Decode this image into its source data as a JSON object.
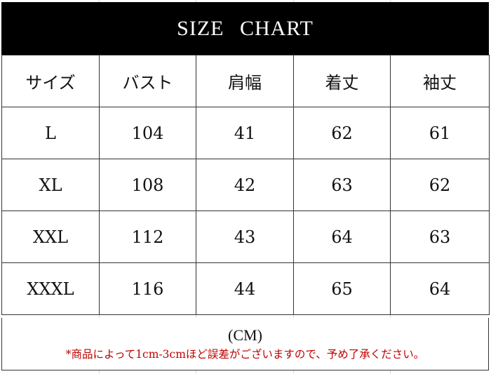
{
  "title": "SIZE CHART",
  "table": {
    "headers": [
      "サイズ",
      "バスト",
      "肩幅",
      "着丈",
      "袖丈"
    ],
    "rows": [
      [
        "L",
        "104",
        "41",
        "62",
        "61"
      ],
      [
        "XL",
        "108",
        "42",
        "63",
        "62"
      ],
      [
        "XXL",
        "112",
        "43",
        "64",
        "63"
      ],
      [
        "XXXL",
        "116",
        "44",
        "65",
        "64"
      ]
    ]
  },
  "footer": {
    "unit": "(CM)",
    "note": "*商品によって1cm-3cmほど誤差がございますので、予め了承ください。"
  },
  "colors": {
    "title_bg": "#000000",
    "note": "#c00000"
  }
}
